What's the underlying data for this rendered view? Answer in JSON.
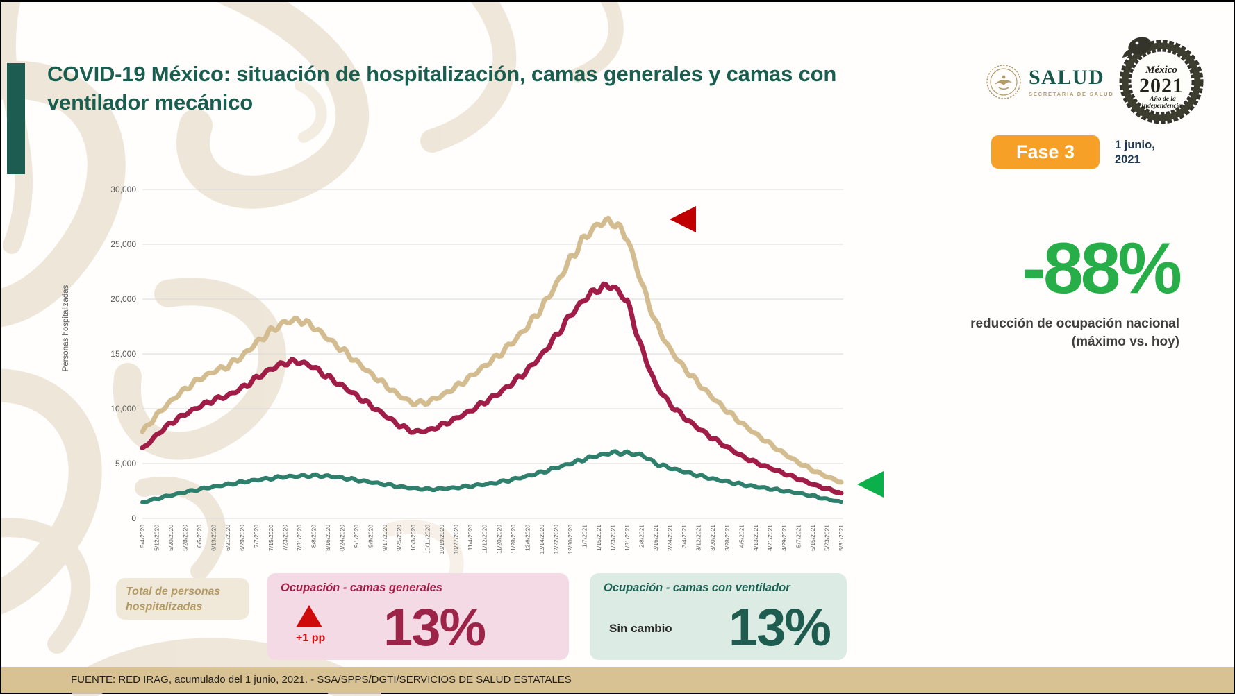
{
  "header": {
    "title": "COVID-19 México: situación de hospitalización, camas generales y camas con ventilador mecánico"
  },
  "logos": {
    "salud": {
      "name": "SALUD",
      "subtitle": "SECRETARÍA DE SALUD"
    },
    "mexico2021": {
      "line1": "México",
      "line2": "2021",
      "line3": "Año de la",
      "line4": "Independencia"
    }
  },
  "phase_badge": {
    "label": "Fase 3",
    "bg": "#f7a028"
  },
  "report_date": {
    "line1": "1 junio,",
    "line2": "2021"
  },
  "highlight": {
    "value": "-88%",
    "color": "#27ae49",
    "caption_line1": "reducción de ocupación nacional",
    "caption_line2": "(máximo vs. hoy)"
  },
  "chart_data": {
    "type": "line",
    "title": "",
    "xlabel": "",
    "ylabel": "Personas hospitalizadas",
    "ylim": [
      0,
      30000
    ],
    "ytick_step": 5000,
    "yticks": [
      "0",
      "5,000",
      "10,000",
      "15,000",
      "20,000",
      "25,000",
      "30,000"
    ],
    "grid": "horizontal",
    "legend_position": "none",
    "x": [
      "5/4/2020",
      "5/12/2020",
      "5/20/2020",
      "5/28/2020",
      "6/5/2020",
      "6/13/2020",
      "6/21/2020",
      "6/29/2020",
      "7/7/2020",
      "7/15/2020",
      "7/23/2020",
      "7/31/2020",
      "8/8/2020",
      "8/16/2020",
      "8/24/2020",
      "9/1/2020",
      "9/9/2020",
      "9/17/2020",
      "9/25/2020",
      "10/3/2020",
      "10/11/2020",
      "10/19/2020",
      "10/27/2020",
      "11/4/2020",
      "11/12/2020",
      "11/20/2020",
      "11/28/2020",
      "12/6/2020",
      "12/14/2020",
      "12/22/2020",
      "12/30/2020",
      "1/7/2021",
      "1/15/2021",
      "1/23/2021",
      "1/31/2021",
      "2/8/2021",
      "2/16/2021",
      "2/24/2021",
      "3/4/2021",
      "3/12/2021",
      "3/20/2021",
      "3/28/2021",
      "4/5/2021",
      "4/13/2021",
      "4/21/2021",
      "4/29/2021",
      "5/7/2021",
      "5/15/2021",
      "5/23/2021",
      "5/31/2021"
    ],
    "series": [
      {
        "name": "Total de personas hospitalizadas",
        "color": "#d3bd90",
        "values": [
          7900,
          9400,
          10700,
          11800,
          12700,
          13400,
          13900,
          14800,
          16000,
          17100,
          17900,
          18100,
          17500,
          16400,
          15400,
          14300,
          13200,
          12200,
          11200,
          10500,
          10600,
          11200,
          12000,
          12900,
          13900,
          14900,
          16100,
          17500,
          19200,
          21300,
          23600,
          25600,
          26900,
          27100,
          25600,
          21500,
          17800,
          15400,
          13700,
          12300,
          11000,
          9800,
          8700,
          7700,
          6800,
          5900,
          5100,
          4400,
          3800,
          3300
        ]
      },
      {
        "name": "Ocupación - camas generales",
        "color": "#a01d47",
        "values": [
          6300,
          7600,
          8700,
          9500,
          10200,
          10800,
          11200,
          11900,
          12800,
          13600,
          14200,
          14300,
          13800,
          12900,
          12100,
          11200,
          10300,
          9400,
          8500,
          7900,
          8000,
          8500,
          9100,
          9800,
          10600,
          11400,
          12400,
          13500,
          14900,
          16600,
          18500,
          20000,
          21000,
          21200,
          19800,
          15500,
          12200,
          10400,
          9200,
          8200,
          7300,
          6500,
          5700,
          5100,
          4600,
          4100,
          3600,
          3100,
          2700,
          2300
        ]
      },
      {
        "name": "Ocupación - camas con ventilador",
        "color": "#2e7f6c",
        "values": [
          1450,
          1800,
          2100,
          2400,
          2650,
          2900,
          3100,
          3300,
          3500,
          3650,
          3800,
          3850,
          3900,
          3850,
          3700,
          3500,
          3300,
          3100,
          2900,
          2750,
          2650,
          2700,
          2800,
          2950,
          3100,
          3300,
          3550,
          3850,
          4200,
          4600,
          5000,
          5400,
          5750,
          6000,
          5950,
          5800,
          5000,
          4600,
          4250,
          3900,
          3600,
          3350,
          3100,
          2900,
          2700,
          2500,
          2300,
          2050,
          1750,
          1500
        ]
      }
    ],
    "annotations": [
      {
        "name": "max-marker",
        "shape": "triangle-left",
        "color": "#c00000"
      },
      {
        "name": "today-marker",
        "shape": "triangle-left",
        "color": "#0cb04a"
      }
    ]
  },
  "cards": [
    {
      "name": "total",
      "bg": "#f0e9da",
      "title": "Total de personas hospitalizadas",
      "title_color": "#b49a62"
    },
    {
      "name": "generales",
      "bg": "#f4dae4",
      "title": "Ocupación - camas generales",
      "title_color": "#a01d47",
      "change_icon": "up-triangle",
      "change_color": "#cf0a0a",
      "change_label": "+1 pp",
      "value": "13%",
      "value_color": "#9d2449"
    },
    {
      "name": "ventilador",
      "bg": "#dcebe3",
      "title": "Ocupación - camas con ventilador",
      "title_color": "#1b6152",
      "change_label": "Sin cambio",
      "change_color": "#262626",
      "value": "13%",
      "value_color": "#1d5c4e"
    }
  ],
  "footer": {
    "text": "FUENTE: RED IRAG, acumulado del 1 junio, 2021. -  SSA/SPPS/DGTI/SERVICIOS DE SALUD ESTATALES"
  }
}
